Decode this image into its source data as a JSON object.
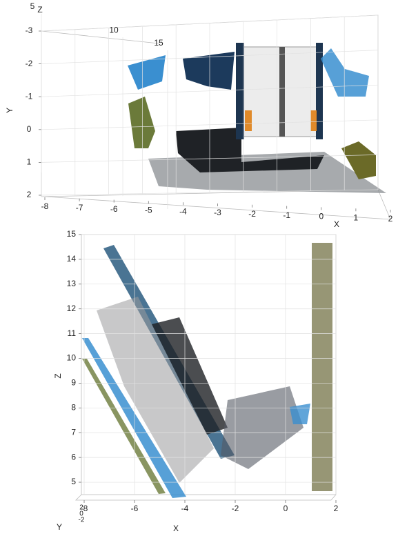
{
  "chart_data": [
    {
      "type": "pointcloud3d",
      "xlabel": "X",
      "ylabel": "Y",
      "zlabel": "Z",
      "xlim": [
        -8,
        2
      ],
      "xticks": [
        -8,
        -7,
        -6,
        -5,
        -4,
        -3,
        -2,
        -1,
        0,
        1,
        2
      ],
      "ylim": [
        -3,
        2
      ],
      "yticks": [
        -3,
        -2,
        -1,
        0,
        1,
        2
      ],
      "zlim": [
        5,
        15
      ],
      "zticks": [
        5,
        10,
        15
      ],
      "grid": true
    },
    {
      "type": "pointcloud2d",
      "xlabel": "X",
      "ylabel": "Y",
      "zlabel": "Z",
      "xlim": [
        -8,
        2
      ],
      "xticks": [
        -8,
        -6,
        -4,
        -2,
        0,
        2
      ],
      "ylim": [
        -2,
        2
      ],
      "yticks": [
        2,
        0,
        -2
      ],
      "zlim": [
        4.5,
        15
      ],
      "zticks": [
        5,
        6,
        7,
        8,
        9,
        10,
        11,
        12,
        13,
        14,
        15
      ],
      "grid": true
    }
  ]
}
